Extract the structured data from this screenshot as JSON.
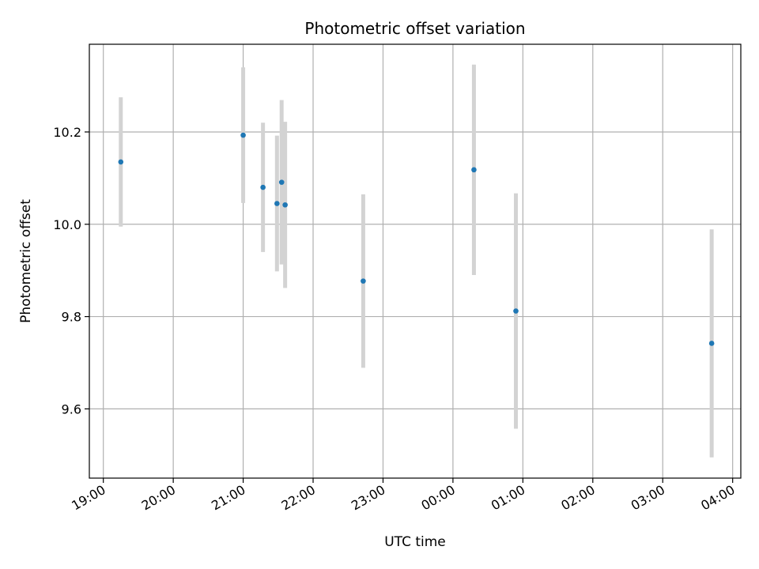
{
  "chart_data": {
    "type": "scatter",
    "title": "Photometric offset variation",
    "xlabel": "UTC time",
    "ylabel": "Photometric offset",
    "x_ticks": [
      "19:00",
      "20:00",
      "21:00",
      "22:00",
      "23:00",
      "00:00",
      "01:00",
      "02:00",
      "03:00",
      "04:00"
    ],
    "y_ticks": [
      "9.6",
      "9.8",
      "10.0",
      "10.2"
    ],
    "y_tick_values": [
      9.6,
      9.8,
      10.0,
      10.2
    ],
    "xlim": [
      "18:48",
      "04:07"
    ],
    "ylim": [
      9.45,
      10.39
    ],
    "grid": true,
    "marker_color": "#1f77b4",
    "errorbar_color": "#d3d3d3",
    "points": [
      {
        "time": "19:15",
        "value": 10.135,
        "error": 0.14
      },
      {
        "time": "21:00",
        "value": 10.193,
        "error": 0.147
      },
      {
        "time": "21:17",
        "value": 10.08,
        "error": 0.14
      },
      {
        "time": "21:29",
        "value": 10.045,
        "error": 0.147
      },
      {
        "time": "21:33",
        "value": 10.091,
        "error": 0.178
      },
      {
        "time": "21:36",
        "value": 10.042,
        "error": 0.18
      },
      {
        "time": "22:43",
        "value": 9.877,
        "error": 0.188
      },
      {
        "time": "00:18",
        "value": 10.118,
        "error": 0.228
      },
      {
        "time": "00:54",
        "value": 9.812,
        "error": 0.255
      },
      {
        "time": "03:42",
        "value": 9.742,
        "error": 0.247
      }
    ]
  }
}
